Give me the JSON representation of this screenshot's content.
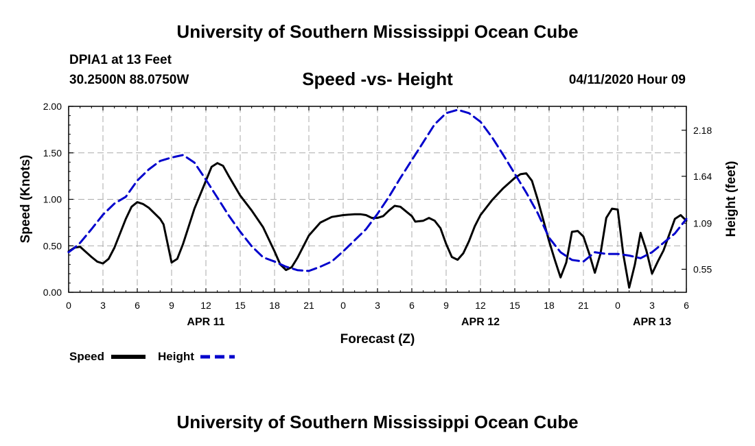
{
  "header": {
    "title": "University of Southern Mississippi Ocean Cube",
    "station_name": "DPIA1 at 13 Feet",
    "station_coords": "30.2500N 88.0750W",
    "subtitle": "Speed -vs- Height",
    "forecast_time": "04/11/2020 Hour 09"
  },
  "footer": {
    "title": "University of Southern Mississippi Ocean Cube"
  },
  "colors": {
    "speed": "#000000",
    "height": "#0000cc",
    "grid": "#aaaaaa"
  },
  "chart_data": {
    "type": "line",
    "title": "Speed -vs- Height",
    "xlabel": "Forecast (Z)",
    "ylabel": "Speed (Knots)",
    "y2label": "Height (feet)",
    "grid": true,
    "legend_position": "bottom-left",
    "x_range_hours": [
      0,
      54
    ],
    "ylim": [
      0,
      2
    ],
    "y_ticks": [
      "0.00",
      "0.50",
      "1.00",
      "1.50",
      "2.00"
    ],
    "y2lim": [
      0.28,
      2.46
    ],
    "y2_ticks": [
      "0.55",
      "1.09",
      "1.64",
      "2.18"
    ],
    "x_ticks": [
      {
        "h": 0,
        "label": "0"
      },
      {
        "h": 3,
        "label": "3"
      },
      {
        "h": 6,
        "label": "6"
      },
      {
        "h": 9,
        "label": "9"
      },
      {
        "h": 12,
        "label": "12"
      },
      {
        "h": 15,
        "label": "15"
      },
      {
        "h": 18,
        "label": "18"
      },
      {
        "h": 21,
        "label": "21"
      },
      {
        "h": 24,
        "label": "0"
      },
      {
        "h": 27,
        "label": "3"
      },
      {
        "h": 30,
        "label": "6"
      },
      {
        "h": 33,
        "label": "9"
      },
      {
        "h": 36,
        "label": "12"
      },
      {
        "h": 39,
        "label": "15"
      },
      {
        "h": 42,
        "label": "18"
      },
      {
        "h": 45,
        "label": "21"
      },
      {
        "h": 48,
        "label": "0"
      },
      {
        "h": 51,
        "label": "3"
      },
      {
        "h": 54,
        "label": "6"
      }
    ],
    "date_labels": [
      {
        "h": 12,
        "label": "APR 11"
      },
      {
        "h": 36,
        "label": "APR 12"
      },
      {
        "h": 51,
        "label": "APR 13"
      }
    ],
    "series": [
      {
        "name": "Speed",
        "axis": "left",
        "style": "solid",
        "points": [
          [
            0,
            0.44
          ],
          [
            0.5,
            0.48
          ],
          [
            1,
            0.49
          ],
          [
            2,
            0.38
          ],
          [
            2.5,
            0.33
          ],
          [
            3,
            0.31
          ],
          [
            3.5,
            0.36
          ],
          [
            4,
            0.48
          ],
          [
            5,
            0.79
          ],
          [
            5.5,
            0.92
          ],
          [
            6,
            0.97
          ],
          [
            6.5,
            0.95
          ],
          [
            7,
            0.91
          ],
          [
            8,
            0.79
          ],
          [
            8.3,
            0.73
          ],
          [
            9,
            0.32
          ],
          [
            9.5,
            0.36
          ],
          [
            10,
            0.52
          ],
          [
            11,
            0.9
          ],
          [
            12,
            1.2
          ],
          [
            12.5,
            1.35
          ],
          [
            13,
            1.39
          ],
          [
            13.5,
            1.36
          ],
          [
            14,
            1.25
          ],
          [
            15,
            1.04
          ],
          [
            16,
            0.88
          ],
          [
            17,
            0.7
          ],
          [
            18,
            0.44
          ],
          [
            18.5,
            0.3
          ],
          [
            19,
            0.24
          ],
          [
            19.5,
            0.27
          ],
          [
            20,
            0.37
          ],
          [
            21,
            0.61
          ],
          [
            22,
            0.75
          ],
          [
            23,
            0.81
          ],
          [
            24,
            0.83
          ],
          [
            25,
            0.84
          ],
          [
            25.5,
            0.84
          ],
          [
            26,
            0.83
          ],
          [
            26.5,
            0.8
          ],
          [
            27,
            0.8
          ],
          [
            27.5,
            0.82
          ],
          [
            28,
            0.88
          ],
          [
            28.5,
            0.93
          ],
          [
            29,
            0.92
          ],
          [
            30,
            0.82
          ],
          [
            30.3,
            0.76
          ],
          [
            31,
            0.77
          ],
          [
            31.5,
            0.8
          ],
          [
            32,
            0.77
          ],
          [
            32.5,
            0.69
          ],
          [
            33,
            0.52
          ],
          [
            33.5,
            0.38
          ],
          [
            34,
            0.35
          ],
          [
            34.5,
            0.42
          ],
          [
            35,
            0.55
          ],
          [
            35.5,
            0.71
          ],
          [
            36,
            0.83
          ],
          [
            37,
            0.99
          ],
          [
            38,
            1.12
          ],
          [
            39,
            1.23
          ],
          [
            39.5,
            1.27
          ],
          [
            40,
            1.28
          ],
          [
            40.5,
            1.2
          ],
          [
            41,
            1.0
          ],
          [
            42,
            0.55
          ],
          [
            42.5,
            0.35
          ],
          [
            43,
            0.16
          ],
          [
            43.5,
            0.32
          ],
          [
            44,
            0.65
          ],
          [
            44.5,
            0.66
          ],
          [
            45,
            0.6
          ],
          [
            45.5,
            0.42
          ],
          [
            46,
            0.21
          ],
          [
            46.5,
            0.42
          ],
          [
            47,
            0.8
          ],
          [
            47.5,
            0.9
          ],
          [
            48,
            0.89
          ],
          [
            48.5,
            0.4
          ],
          [
            49,
            0.05
          ],
          [
            49.5,
            0.3
          ],
          [
            50,
            0.64
          ],
          [
            50.5,
            0.45
          ],
          [
            51,
            0.2
          ],
          [
            51.5,
            0.33
          ],
          [
            52,
            0.45
          ],
          [
            53,
            0.79
          ],
          [
            53.5,
            0.83
          ],
          [
            54,
            0.77
          ]
        ]
      },
      {
        "name": "Height",
        "axis": "right",
        "style": "dashed",
        "points": [
          [
            0,
            0.75
          ],
          [
            0.5,
            0.8
          ],
          [
            1,
            0.86
          ],
          [
            2,
            1.02
          ],
          [
            3,
            1.19
          ],
          [
            4,
            1.32
          ],
          [
            5,
            1.4
          ],
          [
            6,
            1.59
          ],
          [
            7,
            1.72
          ],
          [
            8,
            1.82
          ],
          [
            9,
            1.86
          ],
          [
            10,
            1.89
          ],
          [
            11,
            1.8
          ],
          [
            12,
            1.6
          ],
          [
            13,
            1.39
          ],
          [
            14,
            1.18
          ],
          [
            15,
            0.99
          ],
          [
            16,
            0.82
          ],
          [
            17,
            0.69
          ],
          [
            18,
            0.64
          ],
          [
            19,
            0.58
          ],
          [
            20,
            0.54
          ],
          [
            21,
            0.53
          ],
          [
            22,
            0.58
          ],
          [
            23,
            0.64
          ],
          [
            24,
            0.76
          ],
          [
            25,
            0.89
          ],
          [
            26,
            1.02
          ],
          [
            27,
            1.2
          ],
          [
            28,
            1.4
          ],
          [
            29,
            1.62
          ],
          [
            30,
            1.83
          ],
          [
            31,
            2.04
          ],
          [
            32,
            2.25
          ],
          [
            33,
            2.38
          ],
          [
            34,
            2.42
          ],
          [
            35,
            2.38
          ],
          [
            36,
            2.28
          ],
          [
            37,
            2.1
          ],
          [
            38,
            1.89
          ],
          [
            39,
            1.67
          ],
          [
            40,
            1.45
          ],
          [
            41,
            1.21
          ],
          [
            42,
            0.92
          ],
          [
            43,
            0.75
          ],
          [
            44,
            0.66
          ],
          [
            45,
            0.64
          ],
          [
            46,
            0.75
          ],
          [
            47,
            0.73
          ],
          [
            48,
            0.73
          ],
          [
            49,
            0.71
          ],
          [
            50,
            0.68
          ],
          [
            51,
            0.75
          ],
          [
            52,
            0.86
          ],
          [
            53,
            0.97
          ],
          [
            54,
            1.14
          ]
        ]
      }
    ]
  }
}
